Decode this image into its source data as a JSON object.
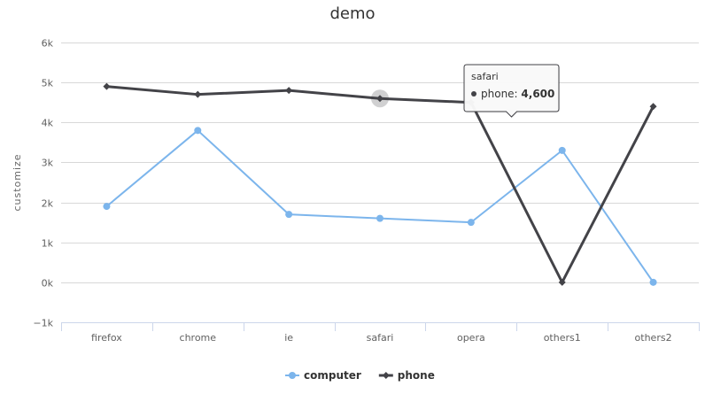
{
  "chart_data": {
    "type": "line",
    "title": "demo",
    "ylabel": "customize",
    "xlabel": "",
    "categories": [
      "firefox",
      "chrome",
      "ie",
      "safari",
      "opera",
      "others1",
      "others2"
    ],
    "ylim": [
      -1000,
      6000
    ],
    "yticks": [
      -1000,
      0,
      1000,
      2000,
      3000,
      4000,
      5000,
      6000
    ],
    "ytick_labels": [
      "−1k",
      "0k",
      "1k",
      "2k",
      "3k",
      "4k",
      "5k",
      "6k"
    ],
    "grid": true,
    "legend_position": "bottom-center",
    "series": [
      {
        "name": "computer",
        "color": "#7cb5ec",
        "marker": "circle",
        "values": [
          1900,
          3800,
          1700,
          1600,
          1500,
          3300,
          0
        ]
      },
      {
        "name": "phone",
        "color": "#434348",
        "marker": "diamond",
        "values": [
          4900,
          4700,
          4800,
          4600,
          4500,
          0,
          4400
        ]
      }
    ],
    "tooltip": {
      "category": "safari",
      "series": "phone",
      "label": "phone: ",
      "value": "4,600"
    }
  }
}
